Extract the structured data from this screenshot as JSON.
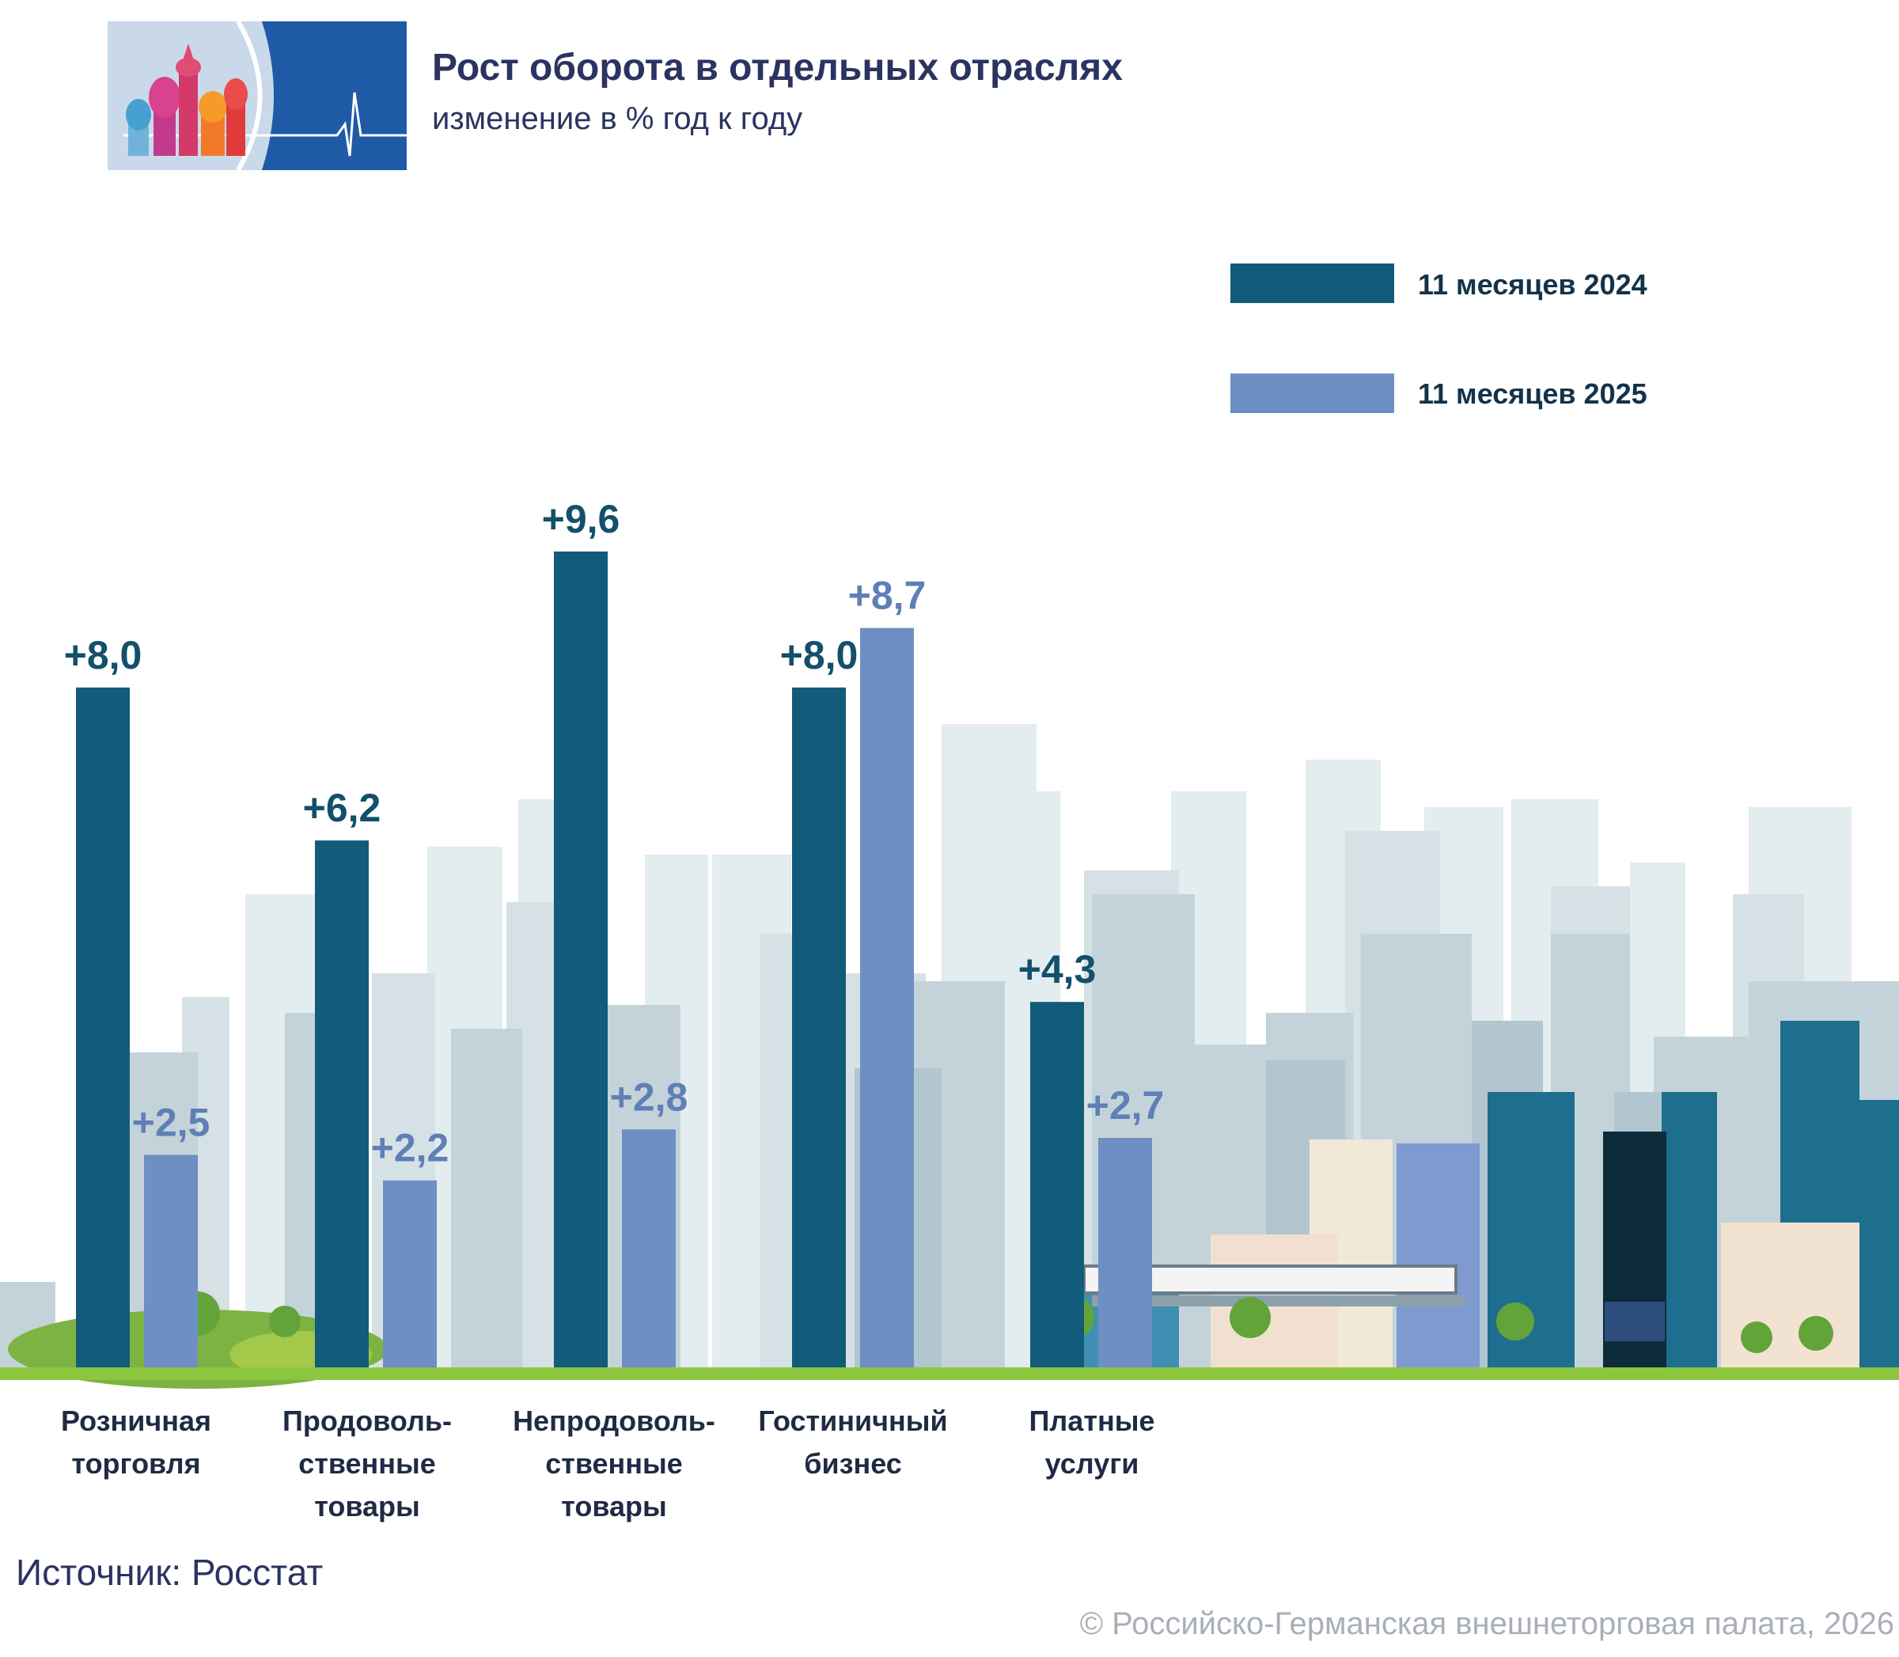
{
  "header": {
    "title": "Рост оборота в отдельных отраслях",
    "subtitle": "изменение в % год к году"
  },
  "footer": {
    "source": "Источник: Росстат",
    "copyright": "© Российско-Германская внешнеторговая палата, 2026"
  },
  "colors": {
    "series_2024": "#125b7b",
    "series_2025": "#6e8fc4",
    "label_2024": "#12506b",
    "label_2025": "#5f7fb6",
    "ground": "#8cc63f",
    "title": "#2b3361"
  },
  "chart_data": {
    "type": "bar",
    "title": "Рост оборота в отдельных отраслях",
    "subtitle": "изменение в % год к году",
    "categories": [
      [
        "Розничная",
        "торговля"
      ],
      [
        "Продоволь-",
        "ственные",
        "товары"
      ],
      [
        "Непродоволь-",
        "ственные",
        "товары"
      ],
      [
        "Гостиничный",
        "бизнес"
      ],
      [
        "Платные",
        "услуги"
      ]
    ],
    "series": [
      {
        "name": "11 месяцев 2024",
        "values": [
          8.0,
          6.2,
          9.6,
          8.0,
          4.3
        ],
        "labels": [
          "+8,0",
          "+6,2",
          "+9,6",
          "+8,0",
          "+4,3"
        ]
      },
      {
        "name": "11 месяцев 2025",
        "values": [
          2.5,
          2.2,
          2.8,
          8.7,
          2.7
        ],
        "labels": [
          "+2,5",
          "+2,2",
          "+2,8",
          "+8,7",
          "+2,7"
        ]
      }
    ],
    "ylim": [
      0,
      10
    ],
    "grid": false,
    "legend_position": "top-right",
    "xlabel": "",
    "ylabel": ""
  }
}
